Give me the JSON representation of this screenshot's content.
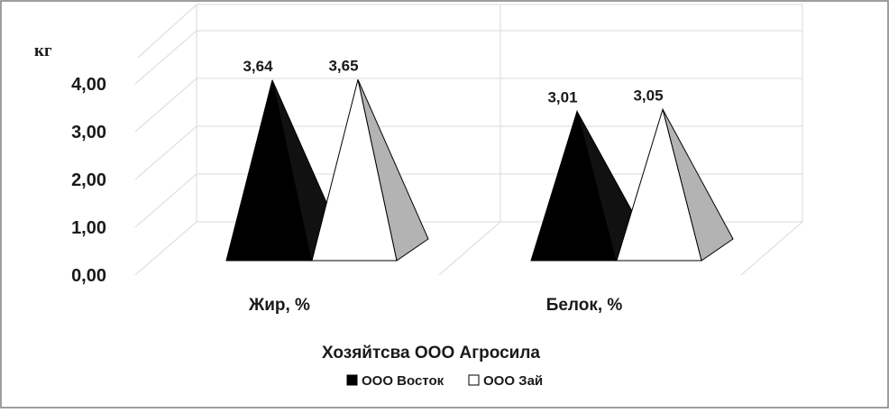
{
  "chart_data": {
    "type": "bar",
    "shape": "3d-pyramid",
    "title": "",
    "unit_label": "кг",
    "xlabel": "Хозяйтсва ООО Агросила",
    "ylabel": "",
    "ylim": [
      0,
      4
    ],
    "yticks": [
      "0,00",
      "1,00",
      "2,00",
      "3,00",
      "4,00"
    ],
    "categories": [
      "Жир, %",
      "Белок, %"
    ],
    "series": [
      {
        "name": "ООО Восток",
        "values": [
          3.64,
          3.01
        ],
        "labels": [
          "3,64",
          "3,01"
        ],
        "color": "#000000"
      },
      {
        "name": "ООО Зай",
        "values": [
          3.65,
          3.05
        ],
        "labels": [
          "3,65",
          "3,05"
        ],
        "color": "#ffffff"
      }
    ],
    "grid": true,
    "legend_position": "bottom",
    "colors": {
      "side_shade": "#b3b3b3",
      "grid": "#d9d9d9",
      "border": "#7f7f7f"
    }
  }
}
